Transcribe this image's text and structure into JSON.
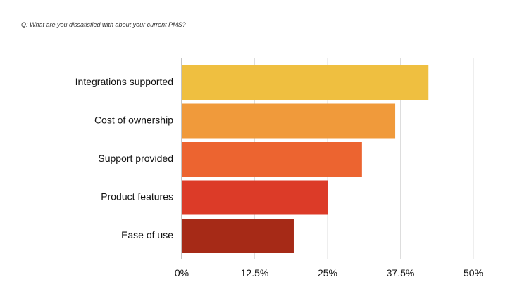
{
  "chart_data": {
    "type": "bar",
    "orientation": "horizontal",
    "title": "Q: What are you dissatisfied with about your current PMS?",
    "categories": [
      "Integrations supported",
      "Cost of ownership",
      "Support provided",
      "Product features",
      "Ease of use"
    ],
    "values": [
      42.3,
      36.6,
      30.9,
      25.0,
      19.2
    ],
    "unit": "%",
    "xlim": [
      0,
      50
    ],
    "ticks": [
      "0%",
      "12.5%",
      "25%",
      "37.5%",
      "50%"
    ],
    "tick_values": [
      0,
      12.5,
      25,
      37.5,
      50
    ],
    "colors": [
      "#EFBF40",
      "#F09A3B",
      "#EC6430",
      "#DC3B28",
      "#A62A17"
    ],
    "grid": true
  }
}
